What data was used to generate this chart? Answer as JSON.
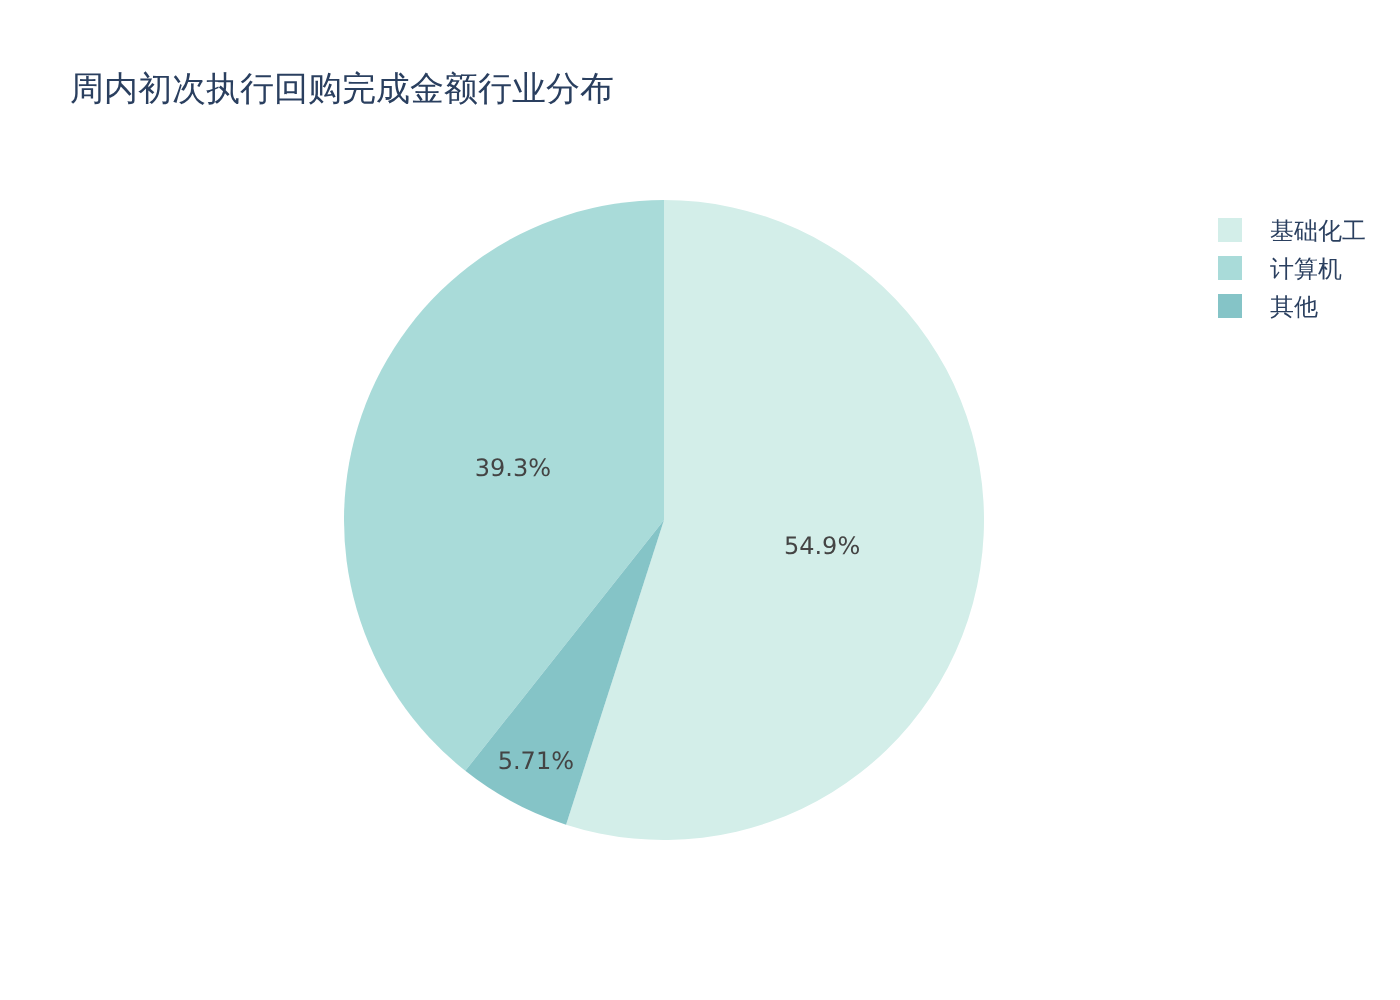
{
  "chart_data": {
    "type": "pie",
    "title": "周内初次执行回购完成金额行业分布",
    "categories": [
      "基础化工",
      "计算机",
      "其他"
    ],
    "values": [
      54.9,
      39.3,
      5.71
    ],
    "colors": [
      "#d3eee9",
      "#a9dbd9",
      "#85c4c7"
    ],
    "value_labels": [
      "54.9%",
      "39.3%",
      "5.71%"
    ],
    "legend": "top right"
  }
}
